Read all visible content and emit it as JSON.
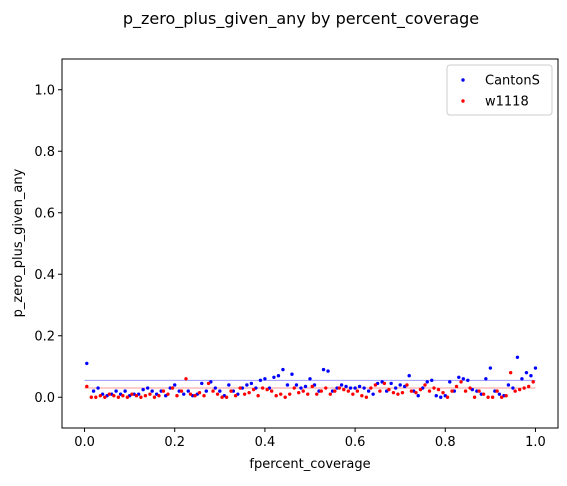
{
  "chart_data": {
    "type": "scatter",
    "title": "p_zero_plus_given_any by percent_coverage",
    "xlabel": "fpercent_coverage",
    "ylabel": "p_zero_plus_given_any",
    "xlim": [
      -0.05,
      1.05
    ],
    "ylim": [
      -0.1,
      1.1
    ],
    "x_ticks": [
      0.0,
      0.2,
      0.4,
      0.6,
      0.8,
      1.0
    ],
    "x_tick_labels": [
      "0.0",
      "0.2",
      "0.4",
      "0.6",
      "0.8",
      "1.0"
    ],
    "y_ticks": [
      0.0,
      0.2,
      0.4,
      0.6,
      0.8,
      1.0
    ],
    "y_tick_labels": [
      "0.0",
      "0.2",
      "0.4",
      "0.6",
      "0.8",
      "1.0"
    ],
    "grid": false,
    "legend_position": "top-right",
    "series": [
      {
        "name": "CantonS",
        "color": "#0000ff",
        "mean_line": 0.055,
        "mean_line_color": "#9999ff",
        "x": [
          0.005,
          0.02,
          0.03,
          0.04,
          0.05,
          0.06,
          0.07,
          0.08,
          0.09,
          0.1,
          0.11,
          0.12,
          0.13,
          0.14,
          0.15,
          0.16,
          0.17,
          0.18,
          0.19,
          0.2,
          0.21,
          0.22,
          0.23,
          0.24,
          0.25,
          0.26,
          0.27,
          0.28,
          0.29,
          0.3,
          0.31,
          0.32,
          0.33,
          0.34,
          0.35,
          0.36,
          0.37,
          0.38,
          0.39,
          0.4,
          0.41,
          0.42,
          0.43,
          0.44,
          0.45,
          0.46,
          0.47,
          0.48,
          0.49,
          0.5,
          0.51,
          0.52,
          0.53,
          0.54,
          0.55,
          0.56,
          0.57,
          0.58,
          0.59,
          0.6,
          0.61,
          0.62,
          0.63,
          0.64,
          0.65,
          0.66,
          0.67,
          0.68,
          0.69,
          0.7,
          0.71,
          0.72,
          0.73,
          0.74,
          0.75,
          0.76,
          0.77,
          0.78,
          0.79,
          0.8,
          0.81,
          0.82,
          0.83,
          0.84,
          0.85,
          0.86,
          0.87,
          0.88,
          0.89,
          0.9,
          0.91,
          0.92,
          0.93,
          0.94,
          0.95,
          0.96,
          0.97,
          0.98,
          0.99,
          1.0
        ],
        "y": [
          0.11,
          0.02,
          0.03,
          0.01,
          0.005,
          0.01,
          0.02,
          0.01,
          0.02,
          0.005,
          0.01,
          0.01,
          0.025,
          0.03,
          0.02,
          0.01,
          0.02,
          0.005,
          0.03,
          0.04,
          0.02,
          0.01,
          0.02,
          0.005,
          0.01,
          0.045,
          0.02,
          0.05,
          0.03,
          0.02,
          0.005,
          0.04,
          0.02,
          0.01,
          0.03,
          0.04,
          0.045,
          0.03,
          0.055,
          0.06,
          0.03,
          0.065,
          0.07,
          0.09,
          0.04,
          0.075,
          0.04,
          0.03,
          0.035,
          0.06,
          0.04,
          0.02,
          0.09,
          0.085,
          0.02,
          0.03,
          0.04,
          0.035,
          0.03,
          0.03,
          0.035,
          0.03,
          0.02,
          0.01,
          0.045,
          0.05,
          0.02,
          0.045,
          0.03,
          0.04,
          0.035,
          0.07,
          0.02,
          0.005,
          0.03,
          0.05,
          0.055,
          0.005,
          0.0,
          0.005,
          0.05,
          0.02,
          0.065,
          0.06,
          0.055,
          0.025,
          0.02,
          0.01,
          0.06,
          0.095,
          0.02,
          0.01,
          0.005,
          0.04,
          0.03,
          0.13,
          0.06,
          0.08,
          0.07,
          0.095
        ]
      },
      {
        "name": "w1118",
        "color": "#ff0000",
        "mean_line": 0.03,
        "mean_line_color": "#ff9999",
        "x": [
          0.005,
          0.015,
          0.025,
          0.035,
          0.045,
          0.055,
          0.065,
          0.075,
          0.085,
          0.095,
          0.105,
          0.115,
          0.125,
          0.135,
          0.145,
          0.155,
          0.165,
          0.175,
          0.185,
          0.195,
          0.205,
          0.215,
          0.225,
          0.235,
          0.245,
          0.255,
          0.265,
          0.275,
          0.285,
          0.295,
          0.305,
          0.315,
          0.325,
          0.335,
          0.345,
          0.355,
          0.365,
          0.375,
          0.385,
          0.395,
          0.405,
          0.415,
          0.425,
          0.435,
          0.445,
          0.455,
          0.465,
          0.475,
          0.485,
          0.495,
          0.505,
          0.515,
          0.525,
          0.535,
          0.545,
          0.555,
          0.565,
          0.575,
          0.585,
          0.595,
          0.605,
          0.615,
          0.625,
          0.635,
          0.645,
          0.655,
          0.665,
          0.675,
          0.685,
          0.695,
          0.705,
          0.715,
          0.725,
          0.735,
          0.745,
          0.755,
          0.765,
          0.775,
          0.785,
          0.795,
          0.805,
          0.815,
          0.825,
          0.835,
          0.845,
          0.855,
          0.865,
          0.875,
          0.885,
          0.895,
          0.905,
          0.915,
          0.925,
          0.935,
          0.945,
          0.955,
          0.965,
          0.975,
          0.985,
          0.995
        ],
        "y": [
          0.035,
          0.0,
          0.0,
          0.005,
          0.0,
          0.01,
          0.005,
          0.0,
          0.005,
          0.0,
          0.01,
          0.005,
          0.0,
          0.005,
          0.01,
          0.0,
          0.005,
          0.02,
          0.01,
          0.03,
          0.005,
          0.02,
          0.06,
          0.01,
          0.005,
          0.015,
          0.005,
          0.045,
          0.02,
          0.01,
          0.0,
          0.0,
          0.02,
          0.005,
          0.03,
          0.01,
          0.015,
          0.025,
          0.005,
          0.03,
          0.025,
          0.02,
          0.005,
          0.01,
          0.0,
          0.01,
          0.03,
          0.015,
          0.02,
          0.01,
          0.035,
          0.01,
          0.02,
          0.03,
          0.01,
          0.02,
          0.03,
          0.025,
          0.02,
          0.01,
          0.02,
          0.005,
          0.0,
          0.03,
          0.04,
          0.02,
          0.045,
          0.025,
          0.015,
          0.01,
          0.015,
          0.04,
          0.02,
          0.015,
          0.025,
          0.04,
          0.02,
          0.03,
          0.025,
          0.015,
          0.0,
          0.02,
          0.035,
          0.05,
          0.02,
          0.03,
          0.0,
          0.02,
          0.01,
          0.0,
          0.0,
          0.02,
          0.0,
          0.005,
          0.08,
          0.02,
          0.025,
          0.03,
          0.035,
          0.05
        ]
      }
    ]
  }
}
